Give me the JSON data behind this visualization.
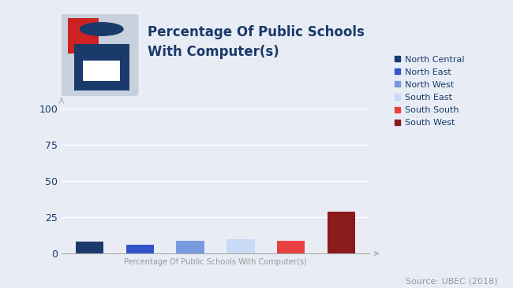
{
  "title_line1": "Percentage Of Public Schools",
  "title_line2": "With Computer(s)",
  "xlabel": "Percentage Of Public Schools With Computer(s)",
  "source": "Source: UBEC (2018)",
  "categories": [
    "North Central",
    "North East",
    "North West",
    "South East",
    "South South",
    "South West"
  ],
  "values": [
    8.0,
    6.0,
    8.5,
    10.0,
    9.0,
    29.0
  ],
  "bar_colors": [
    "#1a3a6b",
    "#3355cc",
    "#7799dd",
    "#c8daf5",
    "#e84040",
    "#8b1a1a"
  ],
  "legend_dot_colors": [
    "#1a3a6b",
    "#3355cc",
    "#7799dd",
    "#c8daf5",
    "#e84040",
    "#8b1a1a"
  ],
  "ylim": [
    0,
    105
  ],
  "yticks": [
    0,
    25,
    50,
    75,
    100
  ],
  "background_color": "#e8edf5",
  "plot_bg_color": "#eaecf5",
  "grid_color": "#ffffff",
  "axis_color": "#aaaaaa",
  "title_color": "#1a3a6b",
  "xlabel_color": "#999999",
  "source_color": "#999999",
  "tick_color": "#1a3a6b",
  "legend_text_color": "#1a3a6b",
  "title_fontsize": 12,
  "xlabel_fontsize": 7,
  "source_fontsize": 8,
  "legend_fontsize": 8,
  "tick_fontsize": 9,
  "icon_bg_color": "#c8d0dd",
  "icon_red_color": "#cc2222",
  "icon_dark_color": "#1a3a6b"
}
